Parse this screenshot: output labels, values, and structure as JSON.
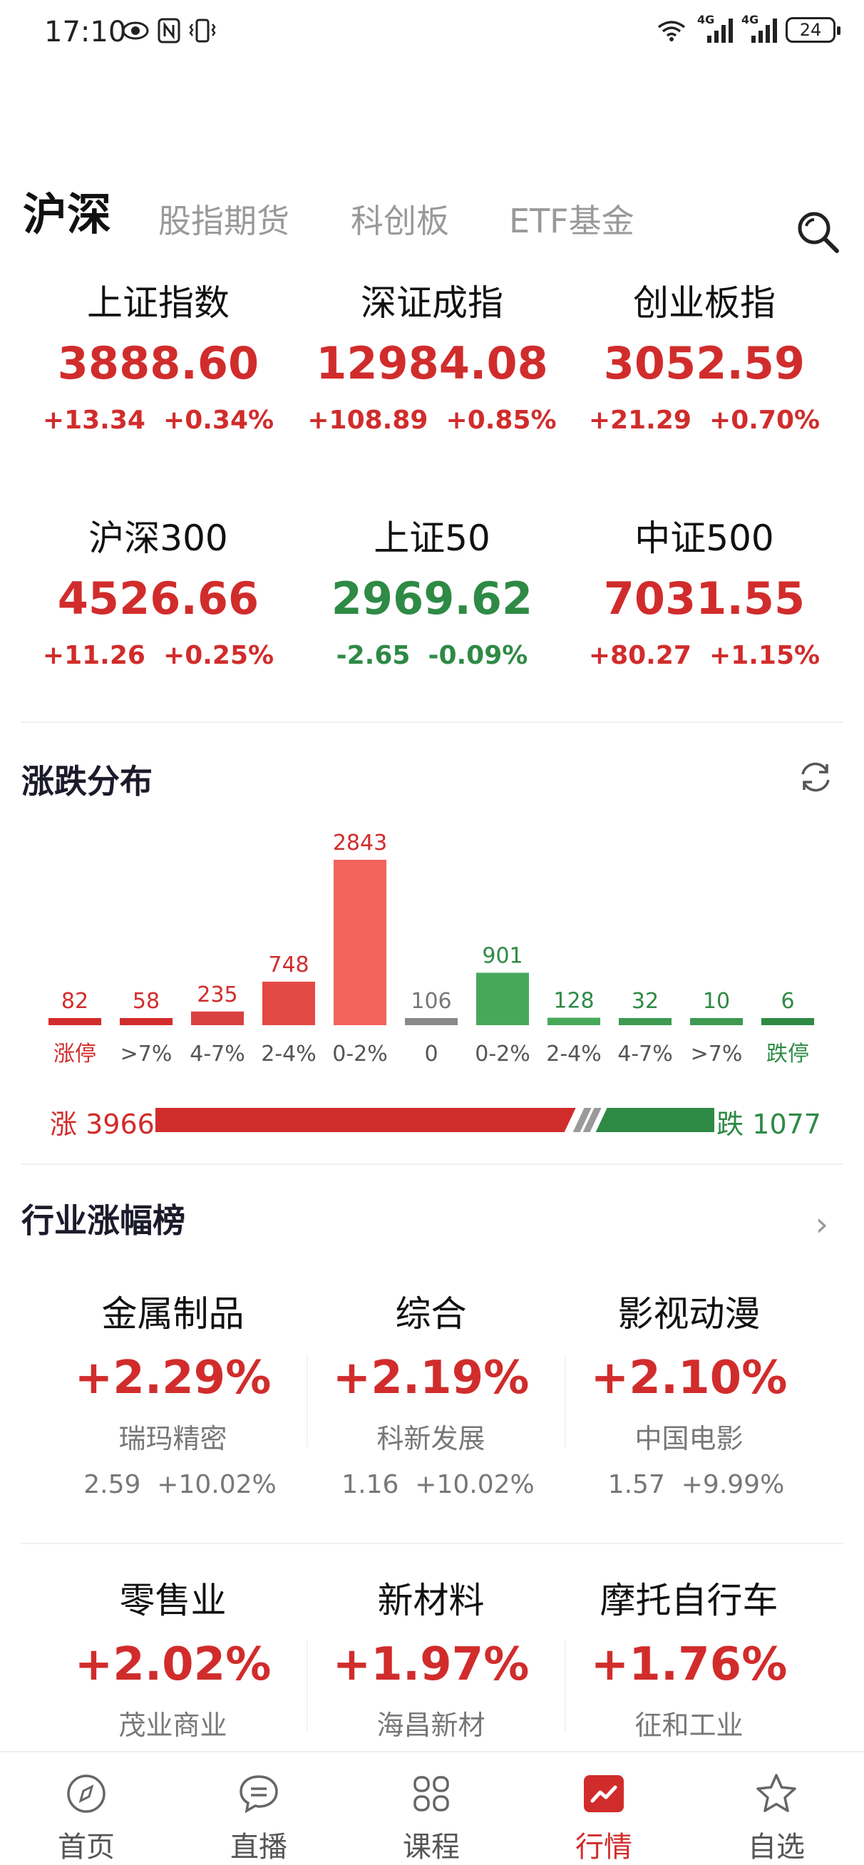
{
  "status_bar": {
    "time": "17:10",
    "battery": "24",
    "left_icons": [
      "eye-icon",
      "nfc-icon",
      "vibrate-icon"
    ],
    "right_icons": [
      "wifi-icon",
      "signal-4g-icon",
      "signal-4g-icon",
      "battery-icon"
    ],
    "net1": "4G",
    "net2": "4G"
  },
  "tabs": [
    {
      "label": "沪深",
      "active": true
    },
    {
      "label": "股指期货",
      "active": false
    },
    {
      "label": "科创板",
      "active": false
    },
    {
      "label": "ETF基金",
      "active": false
    }
  ],
  "indices": [
    {
      "name": "上证指数",
      "value": "3888.60",
      "change": "+13.34",
      "pct": "+0.34%",
      "direction": "up"
    },
    {
      "name": "深证成指",
      "value": "12984.08",
      "change": "+108.89",
      "pct": "+0.85%",
      "direction": "up"
    },
    {
      "name": "创业板指",
      "value": "3052.59",
      "change": "+21.29",
      "pct": "+0.70%",
      "direction": "up"
    },
    {
      "name": "沪深300",
      "value": "4526.66",
      "change": "+11.26",
      "pct": "+0.25%",
      "direction": "up"
    },
    {
      "name": "上证50",
      "value": "2969.62",
      "change": "-2.65",
      "pct": "-0.09%",
      "direction": "down"
    },
    {
      "name": "中证500",
      "value": "7031.55",
      "change": "+80.27",
      "pct": "+1.15%",
      "direction": "up"
    }
  ],
  "distribution": {
    "title": "涨跌分布",
    "up_label": "涨",
    "up_count": "3966",
    "down_label": "跌",
    "down_count": "1077",
    "up_ratio": 0.786
  },
  "chart_data": {
    "type": "bar",
    "categories": [
      "涨停",
      ">7%",
      "4-7%",
      "2-4%",
      "0-2%",
      "0",
      "0-2%",
      "2-4%",
      "4-7%",
      ">7%",
      "跌停"
    ],
    "values": [
      82,
      58,
      235,
      748,
      2843,
      106,
      901,
      128,
      32,
      10,
      6
    ],
    "bar_colors": [
      "#d12c2c",
      "#d12c2c",
      "#d94040",
      "#e34a45",
      "#f2645c",
      "#8a8a8a",
      "#47a85a",
      "#47a85a",
      "#3d9a50",
      "#3d9a50",
      "#2e8a45"
    ],
    "label_colors": [
      "#d12c2c",
      "#d12c2c",
      "#d12c2c",
      "#d12c2c",
      "#d12c2c",
      "#777777",
      "#2e8a45",
      "#2e8a45",
      "#2e8a45",
      "#2e8a45",
      "#2e8a45"
    ],
    "category_colors": [
      "#d12c2c",
      "#555555",
      "#555555",
      "#555555",
      "#555555",
      "#555555",
      "#555555",
      "#555555",
      "#555555",
      "#555555",
      "#2e8a45"
    ],
    "ylim": [
      0,
      2843
    ]
  },
  "industry": {
    "title": "行业涨幅榜",
    "arrow": "›",
    "items": [
      {
        "name": "金属制品",
        "pct": "+2.29%",
        "stock": "瑞玛精密",
        "price": "2.59",
        "stock_pct": "+10.02%"
      },
      {
        "name": "综合",
        "pct": "+2.19%",
        "stock": "科新发展",
        "price": "1.16",
        "stock_pct": "+10.02%"
      },
      {
        "name": "影视动漫",
        "pct": "+2.10%",
        "stock": "中国电影",
        "price": "1.57",
        "stock_pct": "+9.99%"
      },
      {
        "name": "零售业",
        "pct": "+2.02%",
        "stock": "茂业商业",
        "price": "",
        "stock_pct": ""
      },
      {
        "name": "新材料",
        "pct": "+1.97%",
        "stock": "海昌新材",
        "price": "",
        "stock_pct": ""
      },
      {
        "name": "摩托自行车",
        "pct": "+1.76%",
        "stock": "征和工业",
        "price": "",
        "stock_pct": ""
      }
    ]
  },
  "nav": [
    {
      "label": "首页",
      "icon": "compass-icon",
      "active": false
    },
    {
      "label": "直播",
      "icon": "chat-bubble-icon",
      "active": false
    },
    {
      "label": "课程",
      "icon": "grid-icon",
      "active": false
    },
    {
      "label": "行情",
      "icon": "chart-icon",
      "active": true
    },
    {
      "label": "自选",
      "icon": "star-icon",
      "active": false
    }
  ],
  "colors": {
    "up": "#d12c2c",
    "down": "#2e8a45"
  }
}
